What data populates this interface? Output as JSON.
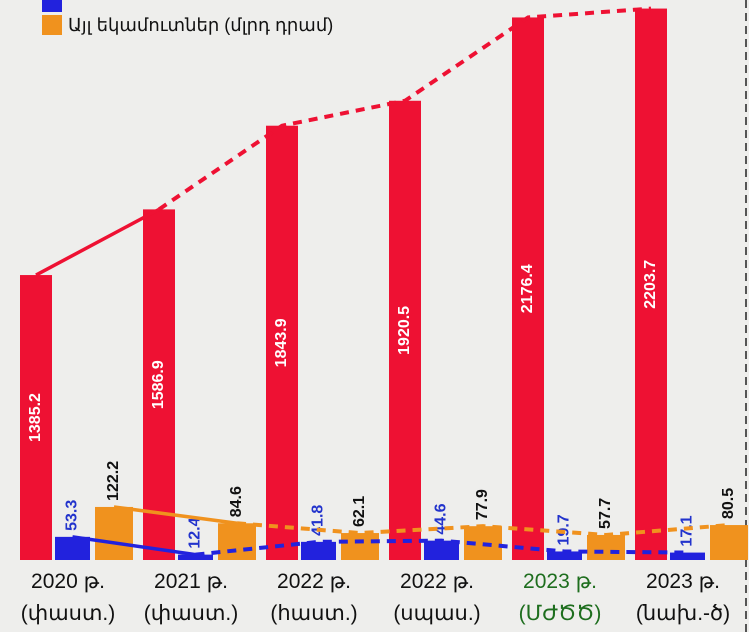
{
  "chart_data": {
    "type": "bar",
    "categories": [
      [
        "2020 թ.",
        "(փաստ.)"
      ],
      [
        "2021 թ.",
        "(փաստ.)"
      ],
      [
        "2022 թ.",
        "(հաստ.)"
      ],
      [
        "2022 թ.",
        "(սպաս.)"
      ],
      [
        "2023 թ.",
        "(ՄԺԾԾ)"
      ],
      [
        "2023 թ.",
        "(նախ.-ծ)"
      ]
    ],
    "category_colors": [
      "#111111",
      "#111111",
      "#111111",
      "#111111",
      "#1e6e1e",
      "#111111"
    ],
    "series": [
      {
        "color": "#ee1133",
        "values": [
          1385.2,
          1586.9,
          1843.9,
          1920.5,
          2176.4,
          2203.7
        ],
        "label_color": "#ffffff"
      },
      {
        "color": "#2222dd",
        "values": [
          53.3,
          12.4,
          41.8,
          44.6,
          19.7,
          17.1
        ],
        "axis": "y2",
        "label_color": "#2233cc",
        "show_in_legend": true
      },
      {
        "name": "Այլ եկամուտներ (մլրդ դրամ)",
        "color": "#f0921e",
        "values": [
          122.2,
          84.6,
          62.1,
          77.9,
          57.7,
          80.5
        ],
        "axis": "y2",
        "label_color": "#111111",
        "show_in_legend": true
      }
    ],
    "ylim": [
      510,
      2230
    ],
    "y2lim": [
      0,
      1290
    ],
    "dashed_from": 1
  }
}
